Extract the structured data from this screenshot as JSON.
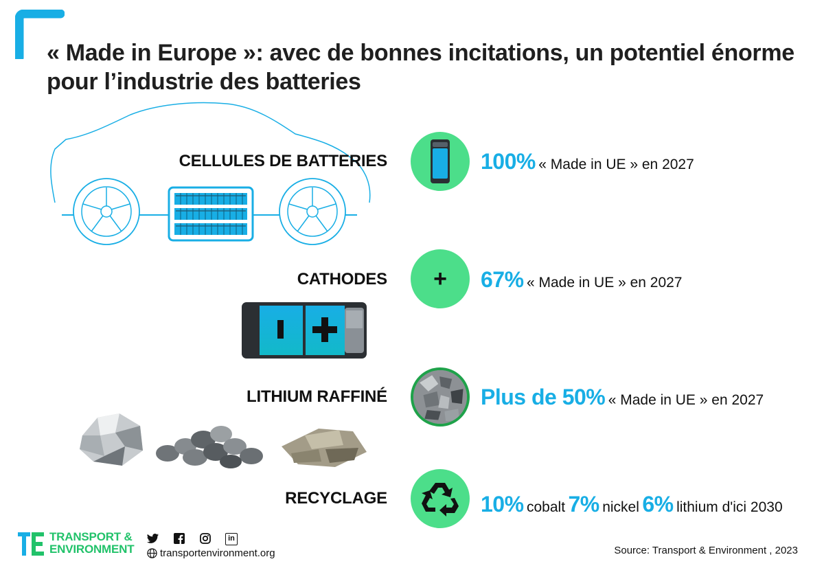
{
  "title": "« Made in Europe »: avec de bonnes incitations, un potentiel énorme pour l’industrie des batteries",
  "colors": {
    "accent_blue": "#18aee5",
    "circle_green": "#4cde8a",
    "brand_green": "#21c26a"
  },
  "rows": [
    {
      "label": "CELLULES DE BATTERIES",
      "icon": "battery-cell-icon",
      "stat_big": "100%",
      "stat_text": "« Made in UE » en 2027"
    },
    {
      "label": "CATHODES",
      "icon": "plus-icon",
      "icon_glyph": "+",
      "stat_big": "67%",
      "stat_text": "« Made in UE » en 2027"
    },
    {
      "label": "LITHIUM RAFFINÉ",
      "icon": "lithium-ore-icon",
      "stat_big": "Plus de 50%",
      "stat_text": "« Made in UE » en 2027"
    },
    {
      "label": "RECYCLAGE",
      "icon": "recycle-icon",
      "stat_parts": [
        "10%",
        "cobalt",
        "7%",
        "nickel",
        "6%",
        "lithium d'ici 2030"
      ]
    }
  ],
  "footer": {
    "brand_line1": "TRANSPORT &",
    "brand_line2": "ENVIRONMENT",
    "social_icons": [
      "twitter-icon",
      "facebook-icon",
      "instagram-icon",
      "linkedin-icon"
    ],
    "linkedin_glyph": "in",
    "website": "transportenvironment.org",
    "source": "Source: Transport & Environment , 2023"
  }
}
